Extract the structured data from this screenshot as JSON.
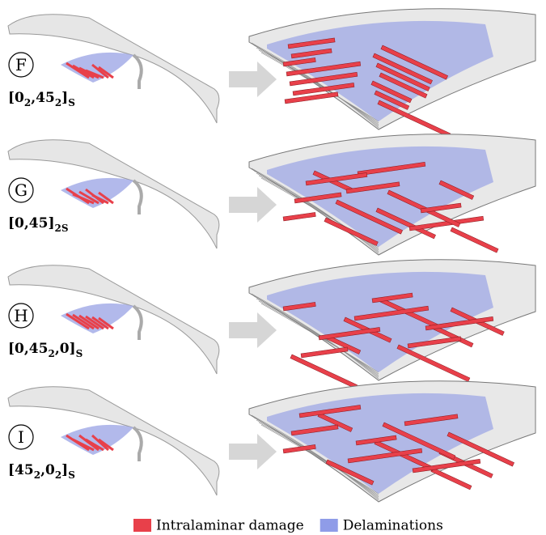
{
  "rows": [
    {
      "label": "F",
      "layup": [
        "[0",
        "2",
        ",45",
        "2",
        "]",
        "S"
      ]
    },
    {
      "label": "G",
      "layup": [
        "[0,45]",
        "2S"
      ]
    },
    {
      "label": "H",
      "layup": [
        "[0,45",
        "2",
        ",0]",
        "S"
      ]
    },
    {
      "label": "I",
      "layup": [
        "[45",
        "2",
        ",0",
        "2",
        "]",
        "S"
      ]
    }
  ],
  "legend": [
    {
      "text": "Intralaminar damage",
      "color": "#e8404a"
    },
    {
      "text": "Delaminations",
      "color": "#8f9ce8"
    }
  ]
}
